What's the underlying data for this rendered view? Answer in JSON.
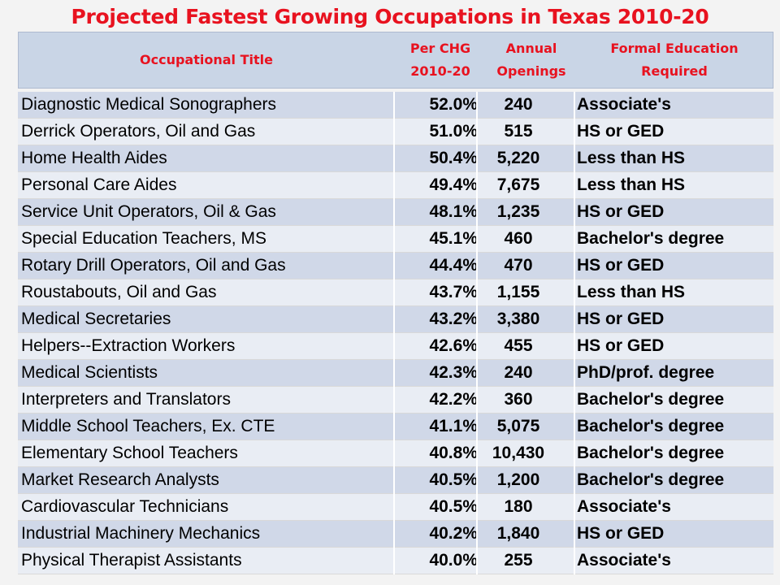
{
  "title": "Projected Fastest Growing Occupations in Texas 2010-20",
  "headers": {
    "occupational_title": "Occupational Title",
    "per_chg_line1": "Per CHG",
    "per_chg_line2": "2010-20",
    "annual_line1": "Annual",
    "annual_line2": "Openings",
    "education_line1": "Formal Education",
    "education_line2": "Required"
  },
  "rows": [
    {
      "title": "Diagnostic Medical Sonographers",
      "pct": "52.0%",
      "openings": "240",
      "education": "Associate's"
    },
    {
      "title": "Derrick Operators, Oil and Gas",
      "pct": "51.0%",
      "openings": "515",
      "education": "HS or GED"
    },
    {
      "title": "Home Health Aides",
      "pct": "50.4%",
      "openings": "5,220",
      "education": "Less than HS"
    },
    {
      "title": "Personal Care Aides",
      "pct": "49.4%",
      "openings": "7,675",
      "education": "Less than HS"
    },
    {
      "title": "Service Unit Operators, Oil & Gas",
      "pct": "48.1%",
      "openings": "1,235",
      "education": "HS or GED"
    },
    {
      "title": "Special Education Teachers, MS",
      "pct": "45.1%",
      "openings": "460",
      "education": "Bachelor's degree"
    },
    {
      "title": "Rotary Drill Operators, Oil and Gas",
      "pct": "44.4%",
      "openings": "470",
      "education": "HS or GED"
    },
    {
      "title": "Roustabouts, Oil and Gas",
      "pct": "43.7%",
      "openings": "1,155",
      "education": "Less than HS"
    },
    {
      "title": "Medical Secretaries",
      "pct": "43.2%",
      "openings": "3,380",
      "education": "HS or GED"
    },
    {
      "title": "Helpers--Extraction Workers",
      "pct": "42.6%",
      "openings": "455",
      "education": "HS or GED"
    },
    {
      "title": "Medical Scientists",
      "pct": "42.3%",
      "openings": "240",
      "education": "PhD/prof. degree"
    },
    {
      "title": "Interpreters and Translators",
      "pct": "42.2%",
      "openings": "360",
      "education": "Bachelor's degree"
    },
    {
      "title": "Middle School Teachers, Ex. CTE",
      "pct": "41.1%",
      "openings": "5,075",
      "education": "Bachelor's degree"
    },
    {
      "title": "Elementary School Teachers",
      "pct": "40.8%",
      "openings": "10,430",
      "education": "Bachelor's degree"
    },
    {
      "title": "Market Research Analysts",
      "pct": "40.5%",
      "openings": "1,200",
      "education": "Bachelor's degree"
    },
    {
      "title": "Cardiovascular Technicians",
      "pct": "40.5%",
      "openings": "180",
      "education": "Associate's"
    },
    {
      "title": "Industrial Machinery Mechanics",
      "pct": "40.2%",
      "openings": "1,840",
      "education": "HS or GED"
    },
    {
      "title": "Physical Therapist Assistants",
      "pct": "40.0%",
      "openings": "255",
      "education": "Associate's"
    }
  ]
}
